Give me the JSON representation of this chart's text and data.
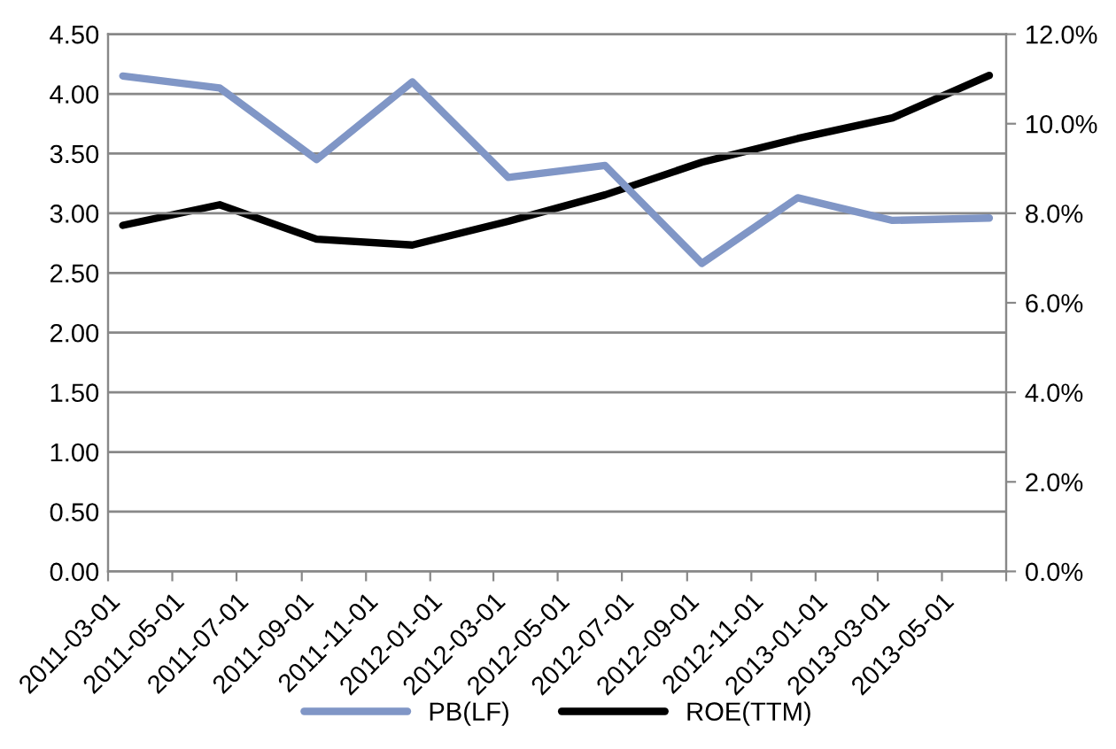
{
  "chart_data": {
    "type": "line",
    "x": [
      "2011-03-15",
      "2011-06-15",
      "2011-09-15",
      "2011-12-15",
      "2012-03-15",
      "2012-06-15",
      "2012-09-15",
      "2012-12-15",
      "2013-03-15",
      "2013-06-15"
    ],
    "series": [
      {
        "name": "PB(LF)",
        "color": "#8096c6",
        "values": [
          4.15,
          4.05,
          3.45,
          4.1,
          3.3,
          3.4,
          2.58,
          3.13,
          2.94,
          2.96
        ]
      },
      {
        "name": "ROE(TTM)",
        "color": "#000000",
        "axis": "y2",
        "values": [
          7.73,
          8.19,
          7.42,
          7.29,
          7.82,
          8.41,
          9.14,
          9.67,
          10.13,
          11.08
        ]
      }
    ],
    "xlim": [
      "2011-03-01",
      "2013-07-01"
    ],
    "xticks": [
      "2011-03-01",
      "2011-05-01",
      "2011-07-01",
      "2011-09-01",
      "2011-11-01",
      "2012-01-01",
      "2012-03-01",
      "2012-05-01",
      "2012-07-01",
      "2012-09-01",
      "2012-11-01",
      "2013-01-01",
      "2013-03-01",
      "2013-05-01",
      {
        "value": "2013-07-01",
        "label": null
      }
    ],
    "ylim": [
      0,
      4.5
    ],
    "yticks": [
      {
        "value": 0,
        "label": "0.00"
      },
      {
        "value": 0.5,
        "label": "0.50"
      },
      {
        "value": 1,
        "label": "1.00"
      },
      {
        "value": 1.5,
        "label": "1.50"
      },
      {
        "value": 2,
        "label": "2.00"
      },
      {
        "value": 2.5,
        "label": "2.50"
      },
      {
        "value": 3,
        "label": "3.00"
      },
      {
        "value": 3.5,
        "label": "3.50"
      },
      {
        "value": 4,
        "label": "4.00"
      },
      {
        "value": 4.5,
        "label": "4.50"
      }
    ],
    "y2lim": [
      0,
      12
    ],
    "y2ticks": [
      {
        "value": 0,
        "label": "0.0%"
      },
      {
        "value": 2,
        "label": "2.0%"
      },
      {
        "value": 4,
        "label": "4.0%"
      },
      {
        "value": 6,
        "label": "6.0%"
      },
      {
        "value": 8,
        "label": "8.0%"
      },
      {
        "value": 10,
        "label": "10.0%"
      },
      {
        "value": 12,
        "label": "12.0%"
      }
    ],
    "grid": "y",
    "legend": "bottom",
    "marker": "none",
    "line_style": "solid"
  }
}
